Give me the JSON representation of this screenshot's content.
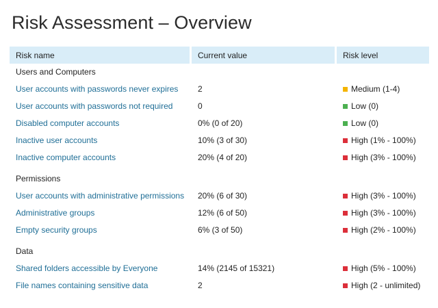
{
  "page": {
    "title": "Risk Assessment – Overview"
  },
  "table": {
    "headers": {
      "risk_name": "Risk name",
      "current_value": "Current value",
      "risk_level": "Risk level"
    },
    "sections": [
      {
        "title": "Users and Computers",
        "rows": [
          {
            "name": "User accounts with passwords never expires",
            "value": "2",
            "level": "Medium (1-4)",
            "severity": "medium",
            "color": "#f4b400"
          },
          {
            "name": "User accounts with passwords not required",
            "value": "0",
            "level": "Low (0)",
            "severity": "low",
            "color": "#4cb050"
          },
          {
            "name": "Disabled computer accounts",
            "value": "0% (0 of 20)",
            "level": "Low (0)",
            "severity": "low",
            "color": "#4cb050"
          },
          {
            "name": "Inactive user accounts",
            "value": "10% (3 of 30)",
            "level": "High (1% - 100%)",
            "severity": "high",
            "color": "#dc2f3a"
          },
          {
            "name": "Inactive computer accounts",
            "value": "20% (4 of 20)",
            "level": "High (3% - 100%)",
            "severity": "high",
            "color": "#dc2f3a"
          }
        ]
      },
      {
        "title": "Permissions",
        "rows": [
          {
            "name": "User accounts with administrative permissions",
            "value": "20% (6 of 30)",
            "level": "High (3% - 100%)",
            "severity": "high",
            "color": "#dc2f3a"
          },
          {
            "name": "Administrative groups",
            "value": "12% (6 of 50)",
            "level": "High (3% - 100%)",
            "severity": "high",
            "color": "#dc2f3a"
          },
          {
            "name": "Empty security groups",
            "value": "6% (3 of 50)",
            "level": "High (2% - 100%)",
            "severity": "high",
            "color": "#dc2f3a"
          }
        ]
      },
      {
        "title": "Data",
        "rows": [
          {
            "name": "Shared folders accessible by Everyone",
            "value": "14% (2145 of 15321)",
            "level": "High (5% - 100%)",
            "severity": "high",
            "color": "#dc2f3a"
          },
          {
            "name": "File names containing sensitive data",
            "value": "2",
            "level": "High (2 - unlimited)",
            "severity": "high",
            "color": "#dc2f3a"
          }
        ]
      }
    ]
  },
  "colors": {
    "header_background": "#d9edf8",
    "link_text": "#1f6e96",
    "medium": "#f4b400",
    "low": "#4cb050",
    "high": "#dc2f3a"
  }
}
